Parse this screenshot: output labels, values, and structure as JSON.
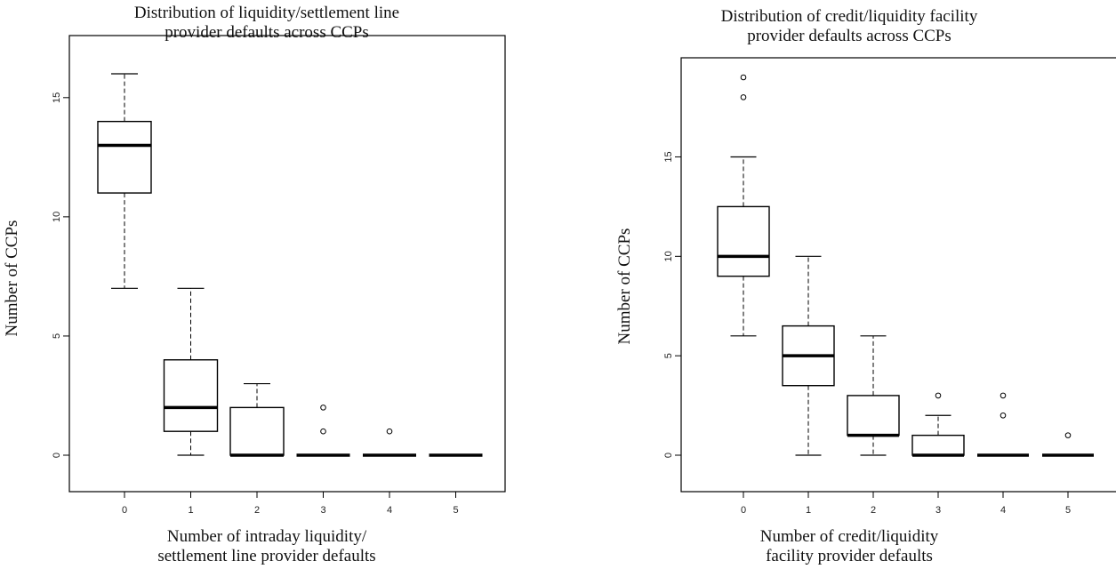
{
  "chart_data": [
    {
      "type": "boxplot",
      "title": [
        "Distribution of liquidity/settlement line",
        "provider defaults across CCPs"
      ],
      "xlabel": [
        "Number of intraday liquidity/",
        "settlement line provider defaults"
      ],
      "ylabel": "Number of CCPs",
      "categories": [
        "0",
        "1",
        "2",
        "3",
        "4",
        "5"
      ],
      "yticks": [
        "0",
        "5",
        "10",
        "15"
      ],
      "ylim": [
        0,
        16
      ],
      "grid": false,
      "boxes": [
        {
          "category": "0",
          "whisker_low": 7,
          "q1": 11,
          "median": 13,
          "q3": 14,
          "whisker_high": 16,
          "outliers": []
        },
        {
          "category": "1",
          "whisker_low": 0,
          "q1": 1,
          "median": 2,
          "q3": 4,
          "whisker_high": 7,
          "outliers": []
        },
        {
          "category": "2",
          "whisker_low": 0,
          "q1": 0,
          "median": 0,
          "q3": 2,
          "whisker_high": 3,
          "outliers": []
        },
        {
          "category": "3",
          "whisker_low": 0,
          "q1": 0,
          "median": 0,
          "q3": 0,
          "whisker_high": 0,
          "outliers": [
            1,
            2
          ]
        },
        {
          "category": "4",
          "whisker_low": 0,
          "q1": 0,
          "median": 0,
          "q3": 0,
          "whisker_high": 0,
          "outliers": [
            1
          ]
        },
        {
          "category": "5",
          "whisker_low": 0,
          "q1": 0,
          "median": 0,
          "q3": 0,
          "whisker_high": 0,
          "outliers": []
        }
      ]
    },
    {
      "type": "boxplot",
      "title": [
        "Distribution of credit/liquidity facility",
        "provider defaults across CCPs"
      ],
      "xlabel": [
        "Number of credit/liquidity",
        "facility provider defaults"
      ],
      "ylabel": "Number of CCPs",
      "categories": [
        "0",
        "1",
        "2",
        "3",
        "4",
        "5"
      ],
      "yticks": [
        "0",
        "5",
        "10",
        "15"
      ],
      "ylim": [
        0,
        19
      ],
      "grid": false,
      "boxes": [
        {
          "category": "0",
          "whisker_low": 6,
          "q1": 9,
          "median": 10,
          "q3": 12.5,
          "whisker_high": 15,
          "outliers": [
            18,
            19
          ]
        },
        {
          "category": "1",
          "whisker_low": 0,
          "q1": 3.5,
          "median": 5,
          "q3": 6.5,
          "whisker_high": 10,
          "outliers": []
        },
        {
          "category": "2",
          "whisker_low": 0,
          "q1": 1,
          "median": 1,
          "q3": 3,
          "whisker_high": 6,
          "outliers": []
        },
        {
          "category": "3",
          "whisker_low": 0,
          "q1": 0,
          "median": 0,
          "q3": 1,
          "whisker_high": 2,
          "outliers": [
            3
          ]
        },
        {
          "category": "4",
          "whisker_low": 0,
          "q1": 0,
          "median": 0,
          "q3": 0,
          "whisker_high": 0,
          "outliers": [
            2,
            3
          ]
        },
        {
          "category": "5",
          "whisker_low": 0,
          "q1": 0,
          "median": 0,
          "q3": 0,
          "whisker_high": 0,
          "outliers": [
            1
          ]
        }
      ]
    }
  ]
}
